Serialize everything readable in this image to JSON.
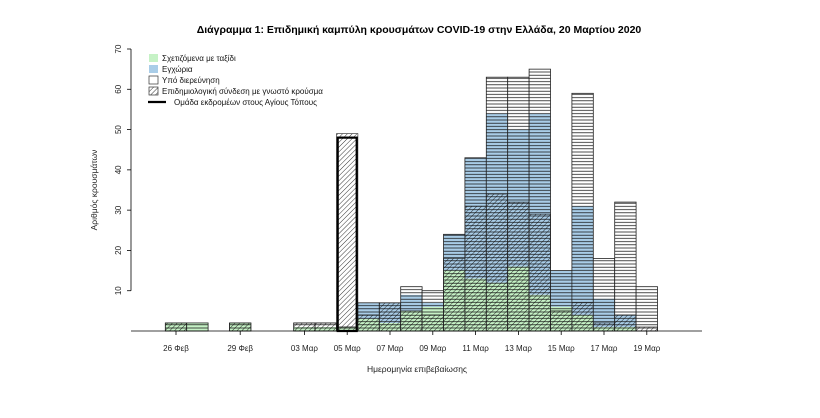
{
  "chart_data": {
    "type": "bar",
    "stacked": true,
    "title": "Διάγραμμα 1: Επιδημική καμπύλη κρουσμάτων COVID-19 στην Ελλάδα, 20 Μαρτίου 2020",
    "xlabel": "Ημερομηνία επιβεβαίωσης",
    "ylabel": "Αριθμός κρουσμάτων",
    "ylim": [
      0,
      70
    ],
    "yticks": [
      10,
      20,
      30,
      40,
      50,
      60,
      70
    ],
    "grid": false,
    "legend_position": "top-left",
    "categories": [
      "26 Φεβ",
      "27 Φεβ",
      "28 Φεβ",
      "29 Φεβ",
      "01 Μαρ",
      "02 Μαρ",
      "03 Μαρ",
      "04 Μαρ",
      "05 Μαρ",
      "06 Μαρ",
      "07 Μαρ",
      "08 Μαρ",
      "09 Μαρ",
      "10 Μαρ",
      "11 Μαρ",
      "12 Μαρ",
      "13 Μαρ",
      "14 Μαρ",
      "15 Μαρ",
      "16 Μαρ",
      "17 Μαρ",
      "18 Μαρ",
      "19 Μαρ"
    ],
    "xtick_labels": [
      "26 Φεβ",
      "29 Φεβ",
      "03 Μαρ",
      "05 Μαρ",
      "07 Μαρ",
      "09 Μαρ",
      "11 Μαρ",
      "13 Μαρ",
      "15 Μαρ",
      "17 Μαρ",
      "19 Μαρ"
    ],
    "series": [
      {
        "name": "Σχετιζόμενα με ταξίδι",
        "color": "#c6f2c6",
        "values": [
          2,
          2,
          0,
          2,
          0,
          0,
          1,
          1,
          1,
          3,
          2,
          5,
          6,
          15,
          13,
          12,
          16,
          9,
          6,
          4,
          1,
          1,
          0
        ]
      },
      {
        "name": "Εγχώρια",
        "color": "#a9cde8",
        "values": [
          0,
          0,
          0,
          0,
          0,
          0,
          0,
          0,
          0,
          4,
          5,
          4,
          1,
          9,
          30,
          42,
          34,
          45,
          9,
          27,
          7,
          3,
          0
        ]
      },
      {
        "name": "Υπό διερεύνηση",
        "color": "#ffffff",
        "values": [
          0,
          0,
          0,
          0,
          0,
          0,
          1,
          1,
          0,
          0,
          0,
          2,
          3,
          0,
          0,
          9,
          13,
          11,
          0,
          28,
          10,
          28,
          11
        ]
      }
    ],
    "epi_link": [
      2,
      0,
      0,
      2,
      0,
      0,
      2,
      2,
      49,
      4,
      7,
      5,
      4,
      18,
      31,
      34,
      32,
      29,
      5,
      7,
      2,
      4,
      1
    ],
    "epi_link_label": "Επιδημιολογική σύνδεση με γνωστό κρούσμα",
    "cluster": [
      0,
      0,
      0,
      0,
      0,
      0,
      0,
      0,
      48,
      0,
      0,
      0,
      0,
      0,
      0,
      0,
      0,
      0,
      0,
      0,
      0,
      0,
      0
    ],
    "cluster_label": "Ομάδα εκδρομέων στους Αγίους Τόπους"
  }
}
